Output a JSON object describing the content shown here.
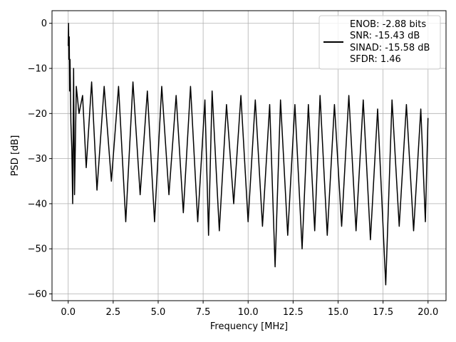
{
  "chart_data": {
    "type": "line",
    "xlabel": "Frequency [MHz]",
    "ylabel": "PSD [dB]",
    "xlim": [
      -0.9,
      21.0
    ],
    "ylim": [
      -61.5,
      2.8
    ],
    "grid": true,
    "legend_position": "top-right",
    "line_color": "#000000",
    "xticks": [
      0.0,
      2.5,
      5.0,
      7.5,
      10.0,
      12.5,
      15.0,
      17.5,
      20.0
    ],
    "xtick_labels": [
      "0.0",
      "2.5",
      "5.0",
      "7.5",
      "10.0",
      "12.5",
      "15.0",
      "17.5",
      "20.0"
    ],
    "yticks": [
      0,
      -10,
      -20,
      -30,
      -40,
      -50,
      -60
    ],
    "ytick_labels": [
      "0",
      "−10",
      "−20",
      "−30",
      "−40",
      "−50",
      "−60"
    ],
    "legend_lines": [
      "ENOB: -2.88 bits",
      "SNR: -15.43 dB",
      "SINAD: -15.58 dB",
      "SFDR: 1.46"
    ],
    "series": [
      {
        "x": [
          0.0,
          0.02,
          0.04,
          0.06,
          0.08,
          0.1,
          0.15,
          0.2,
          0.25,
          0.3,
          0.35,
          0.45,
          0.6,
          0.8,
          1.0,
          1.3,
          1.6,
          2.0,
          2.4,
          2.8,
          3.2,
          3.6,
          4.0,
          4.4,
          4.8,
          5.2,
          5.6,
          6.0,
          6.4,
          6.8,
          7.2,
          7.6,
          7.8,
          8.0,
          8.4,
          8.8,
          9.2,
          9.6,
          10.0,
          10.4,
          10.8,
          11.2,
          11.5,
          11.8,
          12.2,
          12.6,
          13.0,
          13.35,
          13.7,
          14.0,
          14.4,
          14.8,
          15.2,
          15.6,
          16.0,
          16.4,
          16.8,
          17.2,
          17.65,
          18.0,
          18.4,
          18.8,
          19.2,
          19.6,
          19.85,
          20.0
        ],
        "y": [
          -5,
          0,
          -8,
          -3,
          -15,
          -8,
          -22,
          -28,
          -40,
          -10,
          -38,
          -14,
          -20,
          -16,
          -32,
          -13,
          -37,
          -14,
          -35,
          -14,
          -44,
          -13,
          -38,
          -15,
          -44,
          -14,
          -38,
          -16,
          -42,
          -14,
          -44,
          -17,
          -47,
          -15,
          -46,
          -18,
          -40,
          -16,
          -44,
          -17,
          -45,
          -18,
          -54,
          -17,
          -47,
          -18,
          -50,
          -18,
          -46,
          -16,
          -47,
          -18,
          -45,
          -16,
          -46,
          -17,
          -48,
          -19,
          -58,
          -17,
          -45,
          -18,
          -46,
          -19,
          -44,
          -21
        ]
      }
    ]
  }
}
